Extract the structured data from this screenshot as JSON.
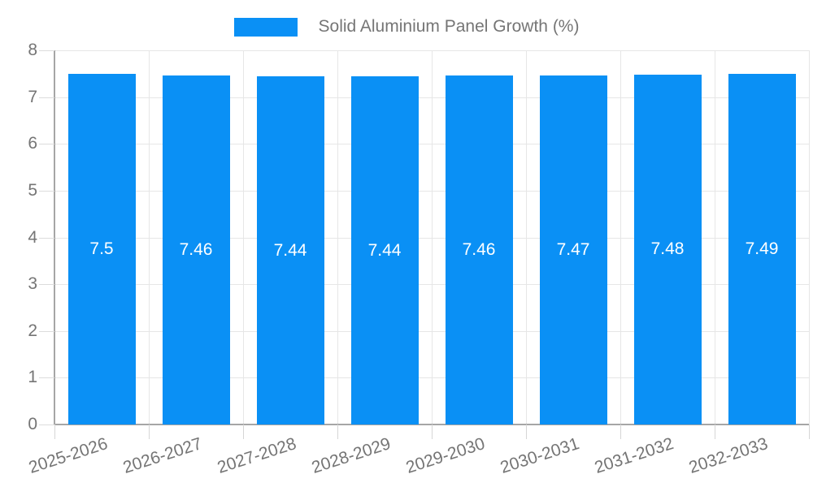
{
  "legend": {
    "label": "Solid Aluminium Panel Growth (%)"
  },
  "colors": {
    "bar": "#0a90f5",
    "grid": "#e6e6e6",
    "axis": "#a6a6a6",
    "tick": "#d6d6d6",
    "axis_text": "#757575",
    "value_text": "#ffffff",
    "background": "#ffffff"
  },
  "chart_data": {
    "type": "bar",
    "title": "",
    "legend_entries": [
      "Solid Aluminium Panel Growth (%)"
    ],
    "legend_position": "top",
    "categories": [
      "2025-2026",
      "2026-2027",
      "2027-2028",
      "2028-2029",
      "2029-2030",
      "2030-2031",
      "2031-2032",
      "2032-2033"
    ],
    "series": [
      {
        "name": "Solid Aluminium Panel Growth (%)",
        "values": [
          7.5,
          7.46,
          7.44,
          7.44,
          7.46,
          7.47,
          7.48,
          7.49
        ]
      }
    ],
    "value_labels": [
      "7.5",
      "7.46",
      "7.44",
      "7.44",
      "7.46",
      "7.47",
      "7.48",
      "7.49"
    ],
    "xlabel": "",
    "ylabel": "",
    "ylim": [
      0,
      8
    ],
    "y_ticks": [
      0,
      1,
      2,
      3,
      4,
      5,
      6,
      7,
      8
    ],
    "grid": true,
    "x_label_rotation_deg": -18
  }
}
